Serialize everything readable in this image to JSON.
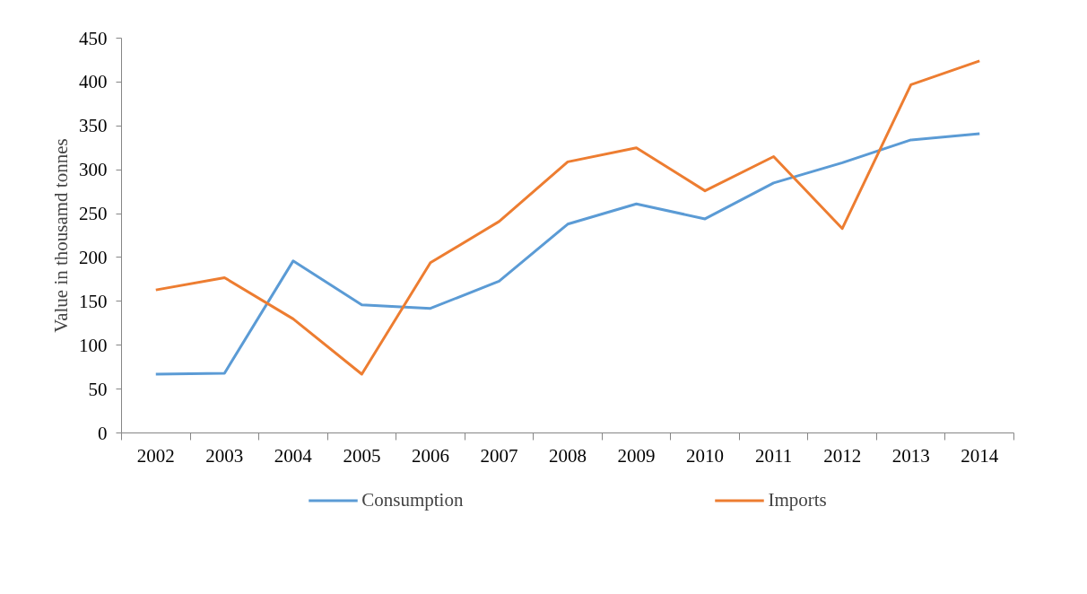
{
  "chart_data": {
    "type": "line",
    "ylabel": "Value in thousamd tonnes",
    "categories": [
      "2002",
      "2003",
      "2004",
      "2005",
      "2006",
      "2007",
      "2008",
      "2009",
      "2010",
      "2011",
      "2012",
      "2013",
      "2014"
    ],
    "series": [
      {
        "name": "Consumption",
        "color": "#5b9bd5",
        "values": [
          67,
          68,
          196,
          146,
          142,
          173,
          238,
          261,
          244,
          285,
          308,
          334,
          341
        ]
      },
      {
        "name": "Imports",
        "color": "#ed7d31",
        "values": [
          163,
          177,
          130,
          67,
          194,
          241,
          309,
          325,
          276,
          315,
          233,
          397,
          424
        ]
      }
    ],
    "ylim": [
      0,
      450
    ],
    "yticks": [
      0,
      50,
      100,
      150,
      200,
      250,
      300,
      350,
      400,
      450
    ],
    "grid": false,
    "legend": "bottom",
    "marker": "none",
    "line_style": "solid"
  }
}
